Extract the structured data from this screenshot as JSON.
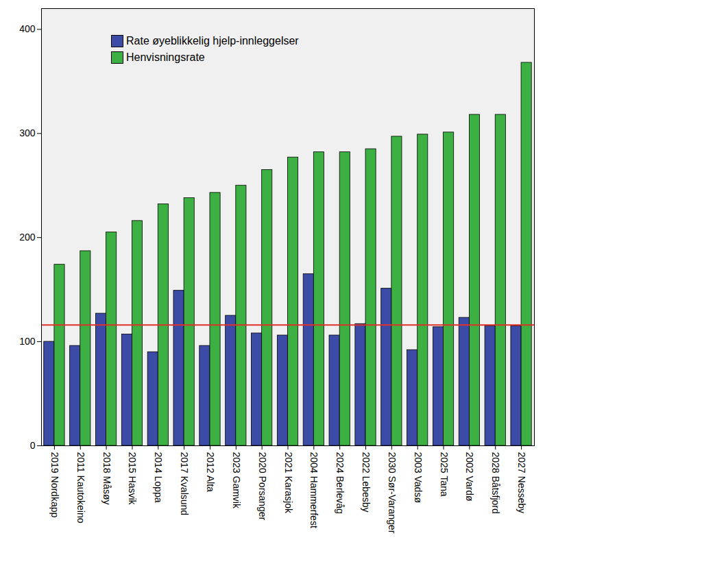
{
  "chart_data": {
    "type": "bar",
    "categories": [
      "2019 Nordkapp",
      "2011 Kautokeino",
      "2018 Måsøy",
      "2015 Hasvik",
      "2014 Loppa",
      "2017 Kvalsund",
      "2012 Alta",
      "2023 Gamvik",
      "2020 Porsanger",
      "2021 Karasjok",
      "2004 Hammerfest",
      "2024 Berlevåg",
      "2022 Lebesby",
      "2030 Sør-Varanger",
      "2003 Vadsø",
      "2025 Tana",
      "2002 Vardø",
      "2028 Båtsfjord",
      "2027 Nesseby"
    ],
    "series": [
      {
        "name": "Rate øyeblikkelig hjelp-innleggelser",
        "color": "#3b4ba6",
        "values": [
          100,
          96,
          127,
          107,
          90,
          149,
          96,
          125,
          108,
          106,
          165,
          106,
          117,
          151,
          92,
          114,
          123,
          115,
          115
        ]
      },
      {
        "name": "Henvisningsrate",
        "color": "#3cb043",
        "values": [
          174,
          187,
          205,
          216,
          232,
          238,
          243,
          250,
          265,
          277,
          282,
          282,
          285,
          297,
          299,
          301,
          318,
          318,
          368
        ]
      }
    ],
    "reference_line": {
      "value": 116,
      "color": "#e0302a"
    },
    "ylim": [
      0,
      420
    ],
    "yticks": [
      0,
      100,
      200,
      300,
      400
    ],
    "grid": false,
    "legend": "top-left"
  }
}
